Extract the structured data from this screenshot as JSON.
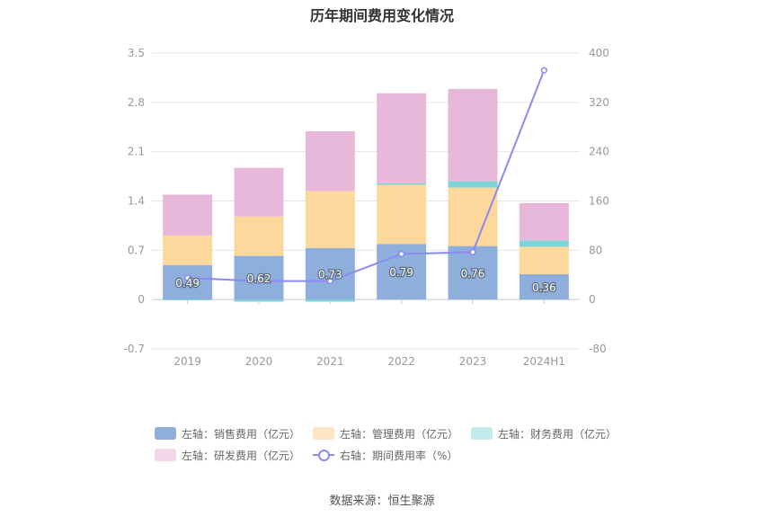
{
  "chart_data": {
    "type": "bar",
    "title": "历年期间费用变化情况",
    "categories": [
      "2019",
      "2020",
      "2021",
      "2022",
      "2023",
      "2024H1"
    ],
    "left_axis": {
      "ticks": [
        "3.5",
        "2.8",
        "2.1",
        "1.4",
        "0.7",
        "0",
        "-0.7"
      ],
      "ylim": [
        -0.7,
        3.5
      ]
    },
    "right_axis": {
      "ticks": [
        "400",
        "320",
        "240",
        "160",
        "80",
        "0",
        "-80"
      ],
      "ylim": [
        -80,
        400
      ]
    },
    "series": [
      {
        "name": "左轴：销售费用（亿元）",
        "color": "#8eaedb",
        "values": [
          0.49,
          0.62,
          0.73,
          0.79,
          0.76,
          0.36
        ]
      },
      {
        "name": "左轴：管理费用（亿元）",
        "color": "#fdd89c",
        "values": [
          0.42,
          0.56,
          0.81,
          0.84,
          0.83,
          0.39
        ]
      },
      {
        "name": "左轴：财务费用（亿元）",
        "color": "#7ed3d8",
        "values": [
          -0.01,
          -0.03,
          -0.03,
          0.02,
          0.09,
          0.09
        ]
      },
      {
        "name": "左轴：研发费用（亿元）",
        "color": "#e8b8da",
        "values": [
          0.58,
          0.69,
          0.85,
          1.28,
          1.31,
          0.53
        ]
      }
    ],
    "line_series": {
      "name": "右轴：期间费用率（%）",
      "color": "#8a8af0",
      "values": [
        35,
        30,
        30,
        74,
        77,
        372
      ]
    },
    "data_labels": [
      "0.49",
      "0.62",
      "0.73",
      "0.79",
      "0.76",
      "0.36"
    ],
    "grid": true,
    "legend_position": "bottom"
  },
  "legend_colors": [
    "#8eaedb",
    "#fde6c4",
    "#c2ecec",
    "#f2d6ea"
  ],
  "source": "数据来源：恒生聚源"
}
